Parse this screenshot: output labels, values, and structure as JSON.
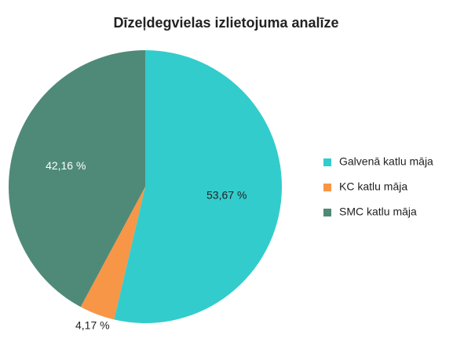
{
  "chart_data": {
    "type": "pie",
    "title": "Dīzeļdegvielas izlietojuma analīze",
    "categories": [
      "Galvenā katlu māja",
      "KC katlu māja",
      "SMC katlu māja"
    ],
    "values": [
      53.67,
      4.17,
      42.16
    ],
    "value_labels": [
      "53,67 %",
      "4,17 %",
      "42,16 %"
    ],
    "colors": [
      "#33cccc",
      "#f79646",
      "#4f8a78"
    ],
    "legend": "right"
  }
}
